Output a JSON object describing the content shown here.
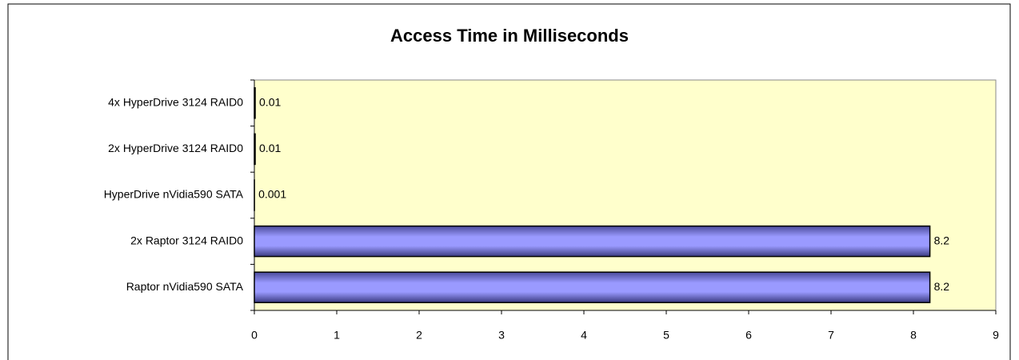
{
  "chart_data": {
    "type": "barh",
    "title": "Access Time in Milliseconds",
    "categories": [
      "4x HyperDrive 3124 RAID0",
      "2x HyperDrive 3124 RAID0",
      "HyperDrive nVidia590 SATA",
      "2x Raptor 3124 RAID0",
      "Raptor nVidia590 SATA"
    ],
    "values": [
      0.01,
      0.01,
      0.001,
      8.2,
      8.2
    ],
    "color": "#9999ff",
    "xlim": [
      0,
      9
    ],
    "xticks": [
      0,
      1,
      2,
      3,
      4,
      5,
      6,
      7,
      8,
      9
    ],
    "grid": false
  }
}
